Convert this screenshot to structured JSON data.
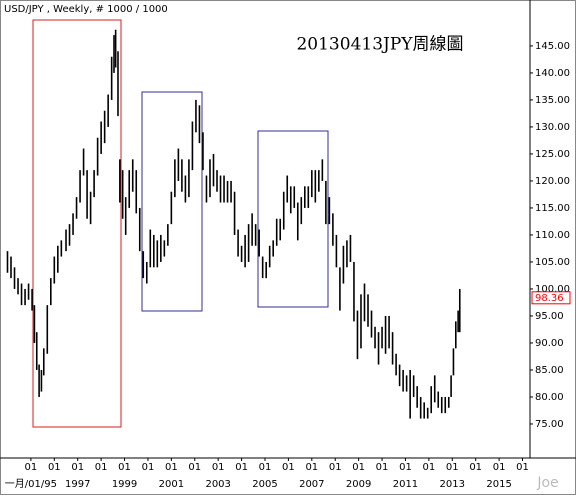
{
  "chart_data": {
    "type": "hilo",
    "header": "USD/JPY , Weekly, # 1000 / 1000",
    "title": "20130413JPY周線圖",
    "watermark": "Joe",
    "color": "#000000",
    "last_value": 98.36,
    "last_value_color": "#ff0000",
    "x": [
      1994.0,
      1994.15,
      1994.3,
      1994.45,
      1994.6,
      1994.75,
      1994.9,
      1995.05,
      1995.15,
      1995.25,
      1995.35,
      1995.45,
      1995.55,
      1995.7,
      1995.85,
      1996.0,
      1996.15,
      1996.3,
      1996.5,
      1996.65,
      1996.8,
      1996.95,
      1997.1,
      1997.25,
      1997.4,
      1997.55,
      1997.7,
      1997.85,
      1998.0,
      1998.15,
      1998.3,
      1998.45,
      1998.55,
      1998.62,
      1998.72,
      1998.8,
      1998.92,
      1999.05,
      1999.2,
      1999.35,
      1999.5,
      1999.65,
      1999.8,
      1999.95,
      2000.1,
      2000.25,
      2000.4,
      2000.55,
      2000.7,
      2000.85,
      2001.0,
      2001.15,
      2001.3,
      2001.45,
      2001.6,
      2001.75,
      2001.9,
      2002.05,
      2002.2,
      2002.35,
      2002.5,
      2002.65,
      2002.8,
      2002.95,
      2003.1,
      2003.25,
      2003.4,
      2003.55,
      2003.7,
      2003.85,
      2004.0,
      2004.15,
      2004.3,
      2004.45,
      2004.6,
      2004.75,
      2004.9,
      2005.05,
      2005.2,
      2005.35,
      2005.5,
      2005.65,
      2005.8,
      2005.95,
      2006.1,
      2006.25,
      2006.4,
      2006.55,
      2006.7,
      2006.85,
      2007.0,
      2007.15,
      2007.3,
      2007.45,
      2007.6,
      2007.75,
      2007.9,
      2008.05,
      2008.2,
      2008.35,
      2008.5,
      2008.65,
      2008.8,
      2008.95,
      2009.1,
      2009.25,
      2009.4,
      2009.55,
      2009.7,
      2009.85,
      2010.0,
      2010.15,
      2010.3,
      2010.45,
      2010.6,
      2010.75,
      2010.9,
      2011.05,
      2011.2,
      2011.35,
      2011.5,
      2011.65,
      2011.8,
      2011.95,
      2012.1,
      2012.25,
      2012.4,
      2012.55,
      2012.7,
      2012.85,
      2012.95,
      2013.05,
      2013.15,
      2013.25,
      2013.32
    ],
    "high": [
      107,
      106,
      104,
      102,
      101,
      100,
      101,
      100,
      97,
      92,
      86,
      85,
      89,
      97,
      102,
      106,
      108,
      109,
      111,
      112,
      114,
      117,
      122,
      126,
      122,
      118,
      122,
      128,
      131,
      133,
      136,
      143,
      147,
      148,
      144,
      124,
      122,
      117,
      122,
      124,
      122,
      115,
      107,
      105,
      111,
      110,
      109,
      110,
      109,
      112,
      118,
      124,
      126,
      124,
      121,
      124,
      131,
      135,
      134,
      129,
      121,
      124,
      125,
      122,
      121,
      121,
      120,
      120,
      118,
      111,
      108,
      110,
      112,
      114,
      112,
      111,
      106,
      105,
      108,
      109,
      113,
      113,
      118,
      121,
      119,
      119,
      116,
      117,
      119,
      119,
      122,
      122,
      122,
      124,
      120,
      117,
      114,
      110,
      104,
      108,
      109,
      110,
      105,
      96,
      99,
      101,
      99,
      96,
      93,
      92,
      93,
      95,
      95,
      92,
      88,
      86,
      85,
      84,
      85,
      84,
      82,
      80,
      79,
      78,
      82,
      84,
      81,
      80,
      80,
      80,
      84,
      89,
      94,
      96,
      100
    ],
    "low": [
      103,
      102,
      100,
      99,
      97,
      97,
      98,
      96,
      90,
      85,
      80,
      81,
      84,
      88,
      97,
      101,
      103,
      106,
      107,
      108,
      110,
      113,
      116,
      121,
      113,
      112,
      117,
      121,
      125,
      127,
      130,
      135,
      140,
      141,
      132,
      116,
      113,
      110,
      115,
      118,
      114,
      107,
      102,
      101,
      104,
      104,
      104,
      105,
      106,
      108,
      112,
      117,
      120,
      118,
      116,
      117,
      122,
      129,
      127,
      122,
      116,
      117,
      119,
      118,
      116,
      116,
      116,
      116,
      110,
      106,
      105,
      104,
      105,
      108,
      108,
      106,
      102,
      102,
      104,
      106,
      108,
      109,
      111,
      116,
      114,
      115,
      109,
      112,
      115,
      115,
      117,
      116,
      118,
      120,
      112,
      112,
      108,
      104,
      96,
      101,
      104,
      105,
      94,
      87,
      89,
      94,
      93,
      91,
      89,
      86,
      89,
      88,
      89,
      86,
      84,
      82,
      81,
      81,
      76,
      80,
      78,
      76,
      76,
      76,
      77,
      79,
      78,
      77,
      77,
      78,
      80,
      84,
      89,
      92,
      92
    ],
    "xlim": [
      1993.68,
      2016.32
    ],
    "ylim": [
      68.7,
      153.5
    ],
    "xticks": [
      {
        "value": 1995,
        "label": "01"
      },
      {
        "value": 1996,
        "label": "01"
      },
      {
        "value": 1997,
        "label": "01"
      },
      {
        "value": 1998,
        "label": "01"
      },
      {
        "value": 1999,
        "label": "01"
      },
      {
        "value": 2000,
        "label": "01"
      },
      {
        "value": 2001,
        "label": "01"
      },
      {
        "value": 2002,
        "label": "01"
      },
      {
        "value": 2003,
        "label": "01"
      },
      {
        "value": 2004,
        "label": "01"
      },
      {
        "value": 2005,
        "label": "01"
      },
      {
        "value": 2006,
        "label": "01"
      },
      {
        "value": 2007,
        "label": "01"
      },
      {
        "value": 2008,
        "label": "01"
      },
      {
        "value": 2009,
        "label": "01"
      },
      {
        "value": 2010,
        "label": "01"
      },
      {
        "value": 2011,
        "label": "01"
      },
      {
        "value": 2012,
        "label": "01"
      },
      {
        "value": 2013,
        "label": "01"
      },
      {
        "value": 2014,
        "label": "01"
      },
      {
        "value": 2015,
        "label": "01"
      },
      {
        "value": 2016,
        "label": "01"
      }
    ],
    "year_labels": [
      {
        "value": 1995,
        "label": "一月/01/95"
      },
      1997,
      1999,
      2001,
      2003,
      2005,
      2007,
      2009,
      2011,
      2013,
      2015
    ],
    "yticks": [
      {
        "value": 75,
        "label": "75.00"
      },
      {
        "value": 80,
        "label": "80.00"
      },
      {
        "value": 85,
        "label": "85.00"
      },
      {
        "value": 90,
        "label": "90.00"
      },
      {
        "value": 95,
        "label": "95.00"
      },
      {
        "value": 100,
        "label": "100.00"
      },
      {
        "value": 105,
        "label": "105.00"
      },
      {
        "value": 110,
        "label": "110.00"
      },
      {
        "value": 115,
        "label": "115.00"
      },
      {
        "value": 120,
        "label": "120.00"
      },
      {
        "value": 125,
        "label": "125.00"
      },
      {
        "value": 130,
        "label": "130.00"
      },
      {
        "value": 135,
        "label": "135.00"
      },
      {
        "value": 140,
        "label": "140.00"
      },
      {
        "value": 145,
        "label": "145.00"
      }
    ]
  }
}
